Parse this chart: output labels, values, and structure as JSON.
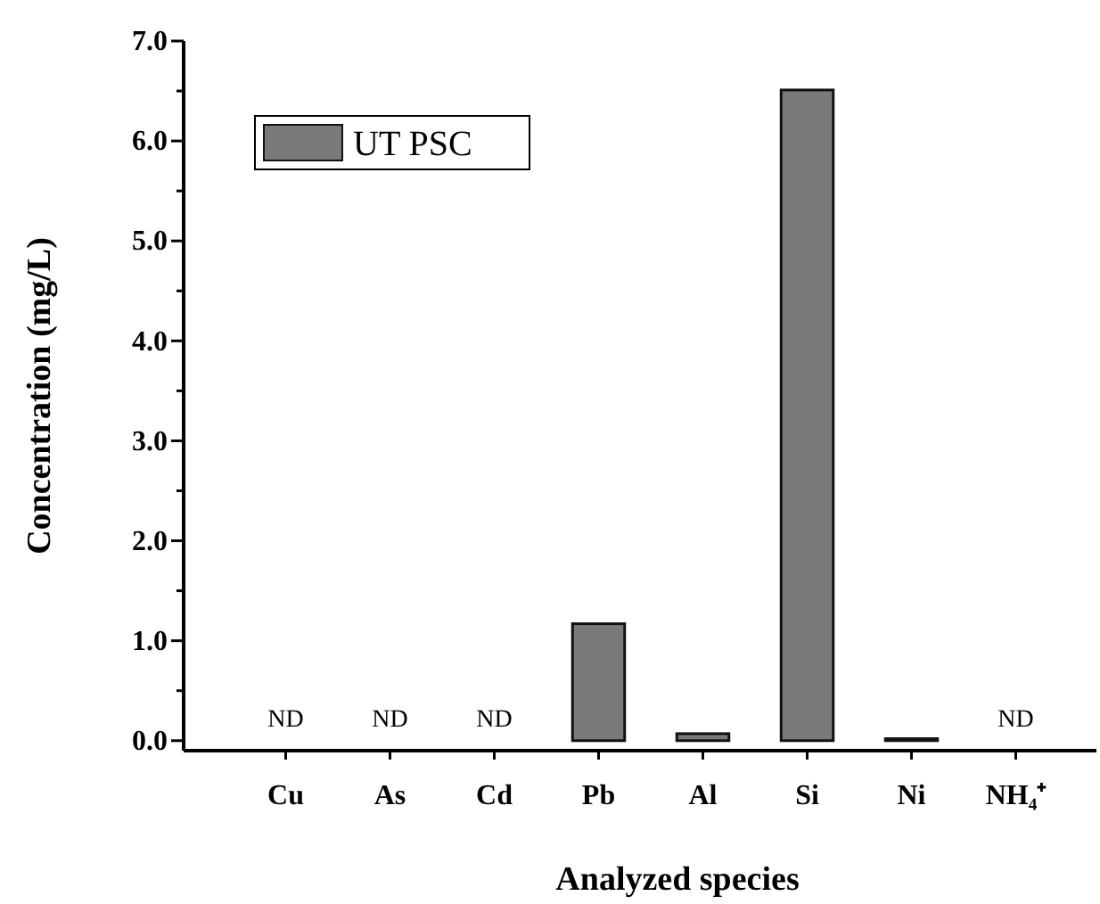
{
  "chart_data": {
    "type": "bar",
    "xlabel": "Analyzed species",
    "ylabel": "Concentration (mg/L)",
    "categories": [
      "Cu",
      "As",
      "Cd",
      "Pb",
      "Al",
      "Si",
      "Ni",
      "NH₄⁺"
    ],
    "series": [
      {
        "name": "UT PSC",
        "color": "#7a7a7a",
        "values": [
          null,
          null,
          null,
          1.17,
          0.07,
          6.51,
          0.02,
          null
        ],
        "value_labels": [
          "ND",
          "ND",
          "ND",
          null,
          null,
          null,
          null,
          "ND"
        ]
      }
    ],
    "ylim": [
      -0.1,
      7.0
    ],
    "yticks": [
      {
        "value": 0,
        "label": "0.0"
      },
      {
        "value": 0.5,
        "label": null
      },
      {
        "value": 1,
        "label": "1.0"
      },
      {
        "value": 1.5,
        "label": null
      },
      {
        "value": 2,
        "label": "2.0"
      },
      {
        "value": 2.5,
        "label": null
      },
      {
        "value": 3,
        "label": "3.0"
      },
      {
        "value": 3.5,
        "label": null
      },
      {
        "value": 4,
        "label": "4.0"
      },
      {
        "value": 4.5,
        "label": null
      },
      {
        "value": 5,
        "label": "5.0"
      },
      {
        "value": 5.5,
        "label": null
      },
      {
        "value": 6,
        "label": "6.0"
      },
      {
        "value": 6.5,
        "label": null
      },
      {
        "value": 7,
        "label": "7.0"
      }
    ],
    "grid": false,
    "legend": "top left"
  }
}
